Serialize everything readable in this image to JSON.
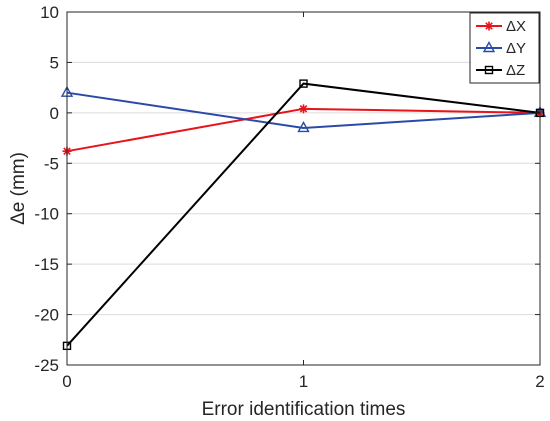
{
  "chart_data": {
    "type": "line",
    "title": "",
    "xlabel": "Error identification times",
    "ylabel": "Δe (mm)",
    "x": [
      0,
      1,
      2
    ],
    "xlim": [
      0,
      2
    ],
    "ylim": [
      -25,
      10
    ],
    "xticks": [
      "0",
      "1",
      "2"
    ],
    "yticks": [
      "10",
      "5",
      "0",
      "-5",
      "-10",
      "-15",
      "-20",
      "-25"
    ],
    "grid": "horizontal",
    "legend_position": "top-right",
    "series": [
      {
        "name": "ΔX",
        "values": [
          -3.8,
          0.4,
          0.0
        ],
        "color": "#e8141c",
        "marker": "asterisk"
      },
      {
        "name": "ΔY",
        "values": [
          2.0,
          -1.5,
          0.0
        ],
        "color": "#2a4aa8",
        "marker": "triangle"
      },
      {
        "name": "ΔZ",
        "values": [
          -23.1,
          2.9,
          0.0
        ],
        "color": "#000000",
        "marker": "square"
      }
    ]
  }
}
